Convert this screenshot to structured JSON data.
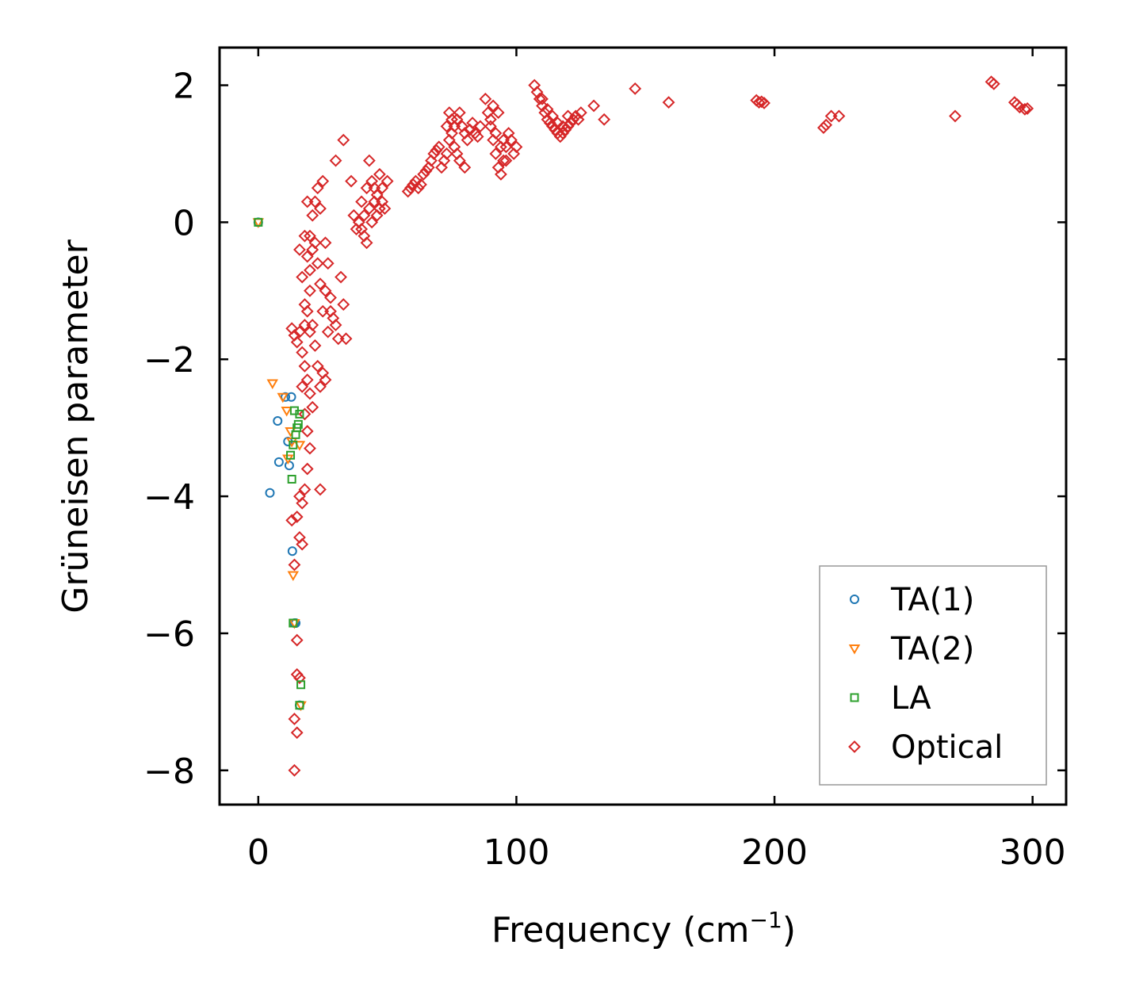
{
  "chart_data": {
    "type": "scatter",
    "title": "",
    "xlabel": "Frequency (cm",
    "xlabel_superscript": "−1",
    "xlabel_suffix": ")",
    "ylabel": "Grüneisen parameter",
    "xlim": [
      -15,
      313
    ],
    "ylim": [
      -8.5,
      2.55
    ],
    "xticks": [
      0,
      100,
      200,
      300
    ],
    "xtick_labels": [
      "0",
      "100",
      "200",
      "300"
    ],
    "yticks": [
      2,
      0,
      -2,
      -4,
      -6,
      -8
    ],
    "ytick_labels": [
      "2",
      "0",
      "−2",
      "−4",
      "−6",
      "−8"
    ],
    "legend_position": "lower-right",
    "series": [
      {
        "name": "TA(1)",
        "marker": "circle",
        "color": "#1f77b4",
        "points": [
          [
            0,
            0
          ],
          [
            7.5,
            -2.9
          ],
          [
            8,
            -3.5
          ],
          [
            10.5,
            -2.55
          ],
          [
            11.5,
            -3.2
          ],
          [
            12,
            -3.55
          ],
          [
            12.8,
            -2.55
          ],
          [
            13.2,
            -4.8
          ],
          [
            4.5,
            -3.95
          ],
          [
            14,
            -5.85
          ],
          [
            14.5,
            -5.85
          ],
          [
            16,
            -7.05
          ]
        ]
      },
      {
        "name": "TA(2)",
        "marker": "triangle-down",
        "color": "#ff7f0e",
        "points": [
          [
            0,
            0
          ],
          [
            5.5,
            -2.35
          ],
          [
            9.5,
            -2.55
          ],
          [
            11,
            -2.75
          ],
          [
            11.5,
            -3.45
          ],
          [
            12.5,
            -3.05
          ],
          [
            13,
            -3.2
          ],
          [
            13.5,
            -5.15
          ],
          [
            16,
            -3.25
          ],
          [
            14,
            -5.85
          ],
          [
            16.5,
            -7.05
          ]
        ]
      },
      {
        "name": "LA",
        "marker": "square",
        "color": "#2ca02c",
        "points": [
          [
            0,
            0
          ],
          [
            12.5,
            -3.4
          ],
          [
            13,
            -3.75
          ],
          [
            13.5,
            -3.25
          ],
          [
            14,
            -2.75
          ],
          [
            14.5,
            -3.1
          ],
          [
            15,
            -3.0
          ],
          [
            15.5,
            -2.95
          ],
          [
            16,
            -2.8
          ],
          [
            13.5,
            -5.85
          ],
          [
            16.5,
            -6.75
          ],
          [
            16,
            -7.05
          ]
        ]
      },
      {
        "name": "Optical",
        "marker": "diamond",
        "color": "#d62728",
        "points": [
          [
            13,
            -1.55
          ],
          [
            14,
            -1.65
          ],
          [
            15,
            -1.75
          ],
          [
            16,
            -1.6
          ],
          [
            17,
            -1.9
          ],
          [
            18,
            -2.1
          ],
          [
            19,
            -2.3
          ],
          [
            20,
            -2.5
          ],
          [
            21,
            -2.7
          ],
          [
            17,
            -2.4
          ],
          [
            18,
            -2.8
          ],
          [
            19,
            -3.05
          ],
          [
            20,
            -3.3
          ],
          [
            19,
            -3.6
          ],
          [
            18,
            -3.9
          ],
          [
            17,
            -4.1
          ],
          [
            16,
            -4.0
          ],
          [
            15,
            -4.3
          ],
          [
            13,
            -4.35
          ],
          [
            17,
            -4.7
          ],
          [
            16,
            -4.6
          ],
          [
            14,
            -5.0
          ],
          [
            15,
            -6.1
          ],
          [
            15,
            -6.6
          ],
          [
            16,
            -6.65
          ],
          [
            14,
            -7.25
          ],
          [
            15,
            -7.45
          ],
          [
            14,
            -8.0
          ],
          [
            24,
            -3.9
          ],
          [
            16,
            -0.4
          ],
          [
            17,
            -0.8
          ],
          [
            18,
            -1.2
          ],
          [
            19,
            -0.5
          ],
          [
            20,
            -0.2
          ],
          [
            21,
            0.1
          ],
          [
            22,
            0.3
          ],
          [
            23,
            0.5
          ],
          [
            24,
            0.2
          ],
          [
            25,
            0.6
          ],
          [
            26,
            -0.3
          ],
          [
            27,
            -0.6
          ],
          [
            28,
            -1.1
          ],
          [
            29,
            -1.4
          ],
          [
            30,
            -1.5
          ],
          [
            31,
            -1.7
          ],
          [
            32,
            -0.8
          ],
          [
            33,
            -1.2
          ],
          [
            34,
            -1.7
          ],
          [
            30,
            0.9
          ],
          [
            33,
            1.2
          ],
          [
            36,
            0.6
          ],
          [
            37,
            0.1
          ],
          [
            38,
            -0.1
          ],
          [
            20,
            -1.0
          ],
          [
            21,
            -1.5
          ],
          [
            22,
            -1.8
          ],
          [
            23,
            -2.1
          ],
          [
            24,
            -2.4
          ],
          [
            25,
            -2.2
          ],
          [
            26,
            -2.3
          ],
          [
            22,
            -0.3
          ],
          [
            23,
            -0.6
          ],
          [
            24,
            -0.9
          ],
          [
            25,
            -1.3
          ],
          [
            26,
            -1.0
          ],
          [
            27,
            -1.6
          ],
          [
            28,
            -1.3
          ],
          [
            18,
            -0.2
          ],
          [
            19,
            0.3
          ],
          [
            20,
            -0.7
          ],
          [
            21,
            -0.4
          ],
          [
            19,
            -1.3
          ],
          [
            20,
            -1.6
          ],
          [
            18,
            -1.5
          ],
          [
            40,
            0.3
          ],
          [
            41,
            0.1
          ],
          [
            42,
            0.5
          ],
          [
            43,
            0.2
          ],
          [
            44,
            0.6
          ],
          [
            45,
            0.3
          ],
          [
            46,
            0.4
          ],
          [
            47,
            0.7
          ],
          [
            48,
            0.5
          ],
          [
            49,
            0.2
          ],
          [
            50,
            0.6
          ],
          [
            41,
            -0.2
          ],
          [
            42,
            -0.3
          ],
          [
            43,
            0.9
          ],
          [
            44,
            0.0
          ],
          [
            46,
            0.1
          ],
          [
            48,
            0.3
          ],
          [
            39,
            0.0
          ],
          [
            40,
            -0.1
          ],
          [
            45,
            0.5
          ],
          [
            47,
            0.2
          ],
          [
            58,
            0.45
          ],
          [
            59,
            0.5
          ],
          [
            60,
            0.55
          ],
          [
            61,
            0.6
          ],
          [
            62,
            0.5
          ],
          [
            63,
            0.55
          ],
          [
            64,
            0.7
          ],
          [
            65,
            0.75
          ],
          [
            66,
            0.8
          ],
          [
            67,
            0.9
          ],
          [
            68,
            1.0
          ],
          [
            69,
            1.05
          ],
          [
            70,
            1.1
          ],
          [
            71,
            0.8
          ],
          [
            72,
            0.9
          ],
          [
            73,
            1.0
          ],
          [
            74,
            1.2
          ],
          [
            75,
            1.3
          ],
          [
            76,
            1.4
          ],
          [
            77,
            1.5
          ],
          [
            78,
            1.6
          ],
          [
            79,
            1.4
          ],
          [
            80,
            1.3
          ],
          [
            81,
            1.2
          ],
          [
            82,
            1.35
          ],
          [
            83,
            1.45
          ],
          [
            84,
            1.3
          ],
          [
            85,
            1.25
          ],
          [
            86,
            1.4
          ],
          [
            76,
            1.1
          ],
          [
            77,
            1.0
          ],
          [
            78,
            0.9
          ],
          [
            80,
            0.8
          ],
          [
            74,
            1.6
          ],
          [
            75,
            1.5
          ],
          [
            73,
            1.4
          ],
          [
            88,
            1.8
          ],
          [
            89,
            1.6
          ],
          [
            90,
            1.4
          ],
          [
            91,
            1.2
          ],
          [
            92,
            1.0
          ],
          [
            93,
            0.8
          ],
          [
            94,
            0.7
          ],
          [
            95,
            0.9
          ],
          [
            96,
            1.1
          ],
          [
            97,
            1.3
          ],
          [
            98,
            1.2
          ],
          [
            99,
            1.0
          ],
          [
            100,
            1.1
          ],
          [
            90,
            1.5
          ],
          [
            92,
            1.3
          ],
          [
            94,
            1.1
          ],
          [
            96,
            0.9
          ],
          [
            91,
            1.7
          ],
          [
            93,
            1.6
          ],
          [
            95,
            1.2
          ],
          [
            107,
            2.0
          ],
          [
            108,
            1.9
          ],
          [
            109,
            1.8
          ],
          [
            110,
            1.7
          ],
          [
            111,
            1.6
          ],
          [
            112,
            1.5
          ],
          [
            113,
            1.45
          ],
          [
            114,
            1.4
          ],
          [
            115,
            1.35
          ],
          [
            116,
            1.3
          ],
          [
            117,
            1.25
          ],
          [
            118,
            1.3
          ],
          [
            119,
            1.35
          ],
          [
            120,
            1.4
          ],
          [
            121,
            1.45
          ],
          [
            122,
            1.5
          ],
          [
            123,
            1.55
          ],
          [
            124,
            1.5
          ],
          [
            125,
            1.6
          ],
          [
            110,
            1.8
          ],
          [
            112,
            1.65
          ],
          [
            114,
            1.55
          ],
          [
            116,
            1.45
          ],
          [
            118,
            1.4
          ],
          [
            120,
            1.55
          ],
          [
            130,
            1.7
          ],
          [
            134,
            1.5
          ],
          [
            146,
            1.95
          ],
          [
            159,
            1.75
          ],
          [
            193,
            1.78
          ],
          [
            194,
            1.75
          ],
          [
            195,
            1.76
          ],
          [
            196,
            1.74
          ],
          [
            219,
            1.38
          ],
          [
            220,
            1.42
          ],
          [
            222,
            1.55
          ],
          [
            225,
            1.55
          ],
          [
            270,
            1.55
          ],
          [
            284,
            2.05
          ],
          [
            285,
            2.02
          ],
          [
            293,
            1.75
          ],
          [
            294,
            1.72
          ],
          [
            295,
            1.68
          ],
          [
            297,
            1.65
          ],
          [
            298,
            1.66
          ]
        ]
      }
    ]
  }
}
